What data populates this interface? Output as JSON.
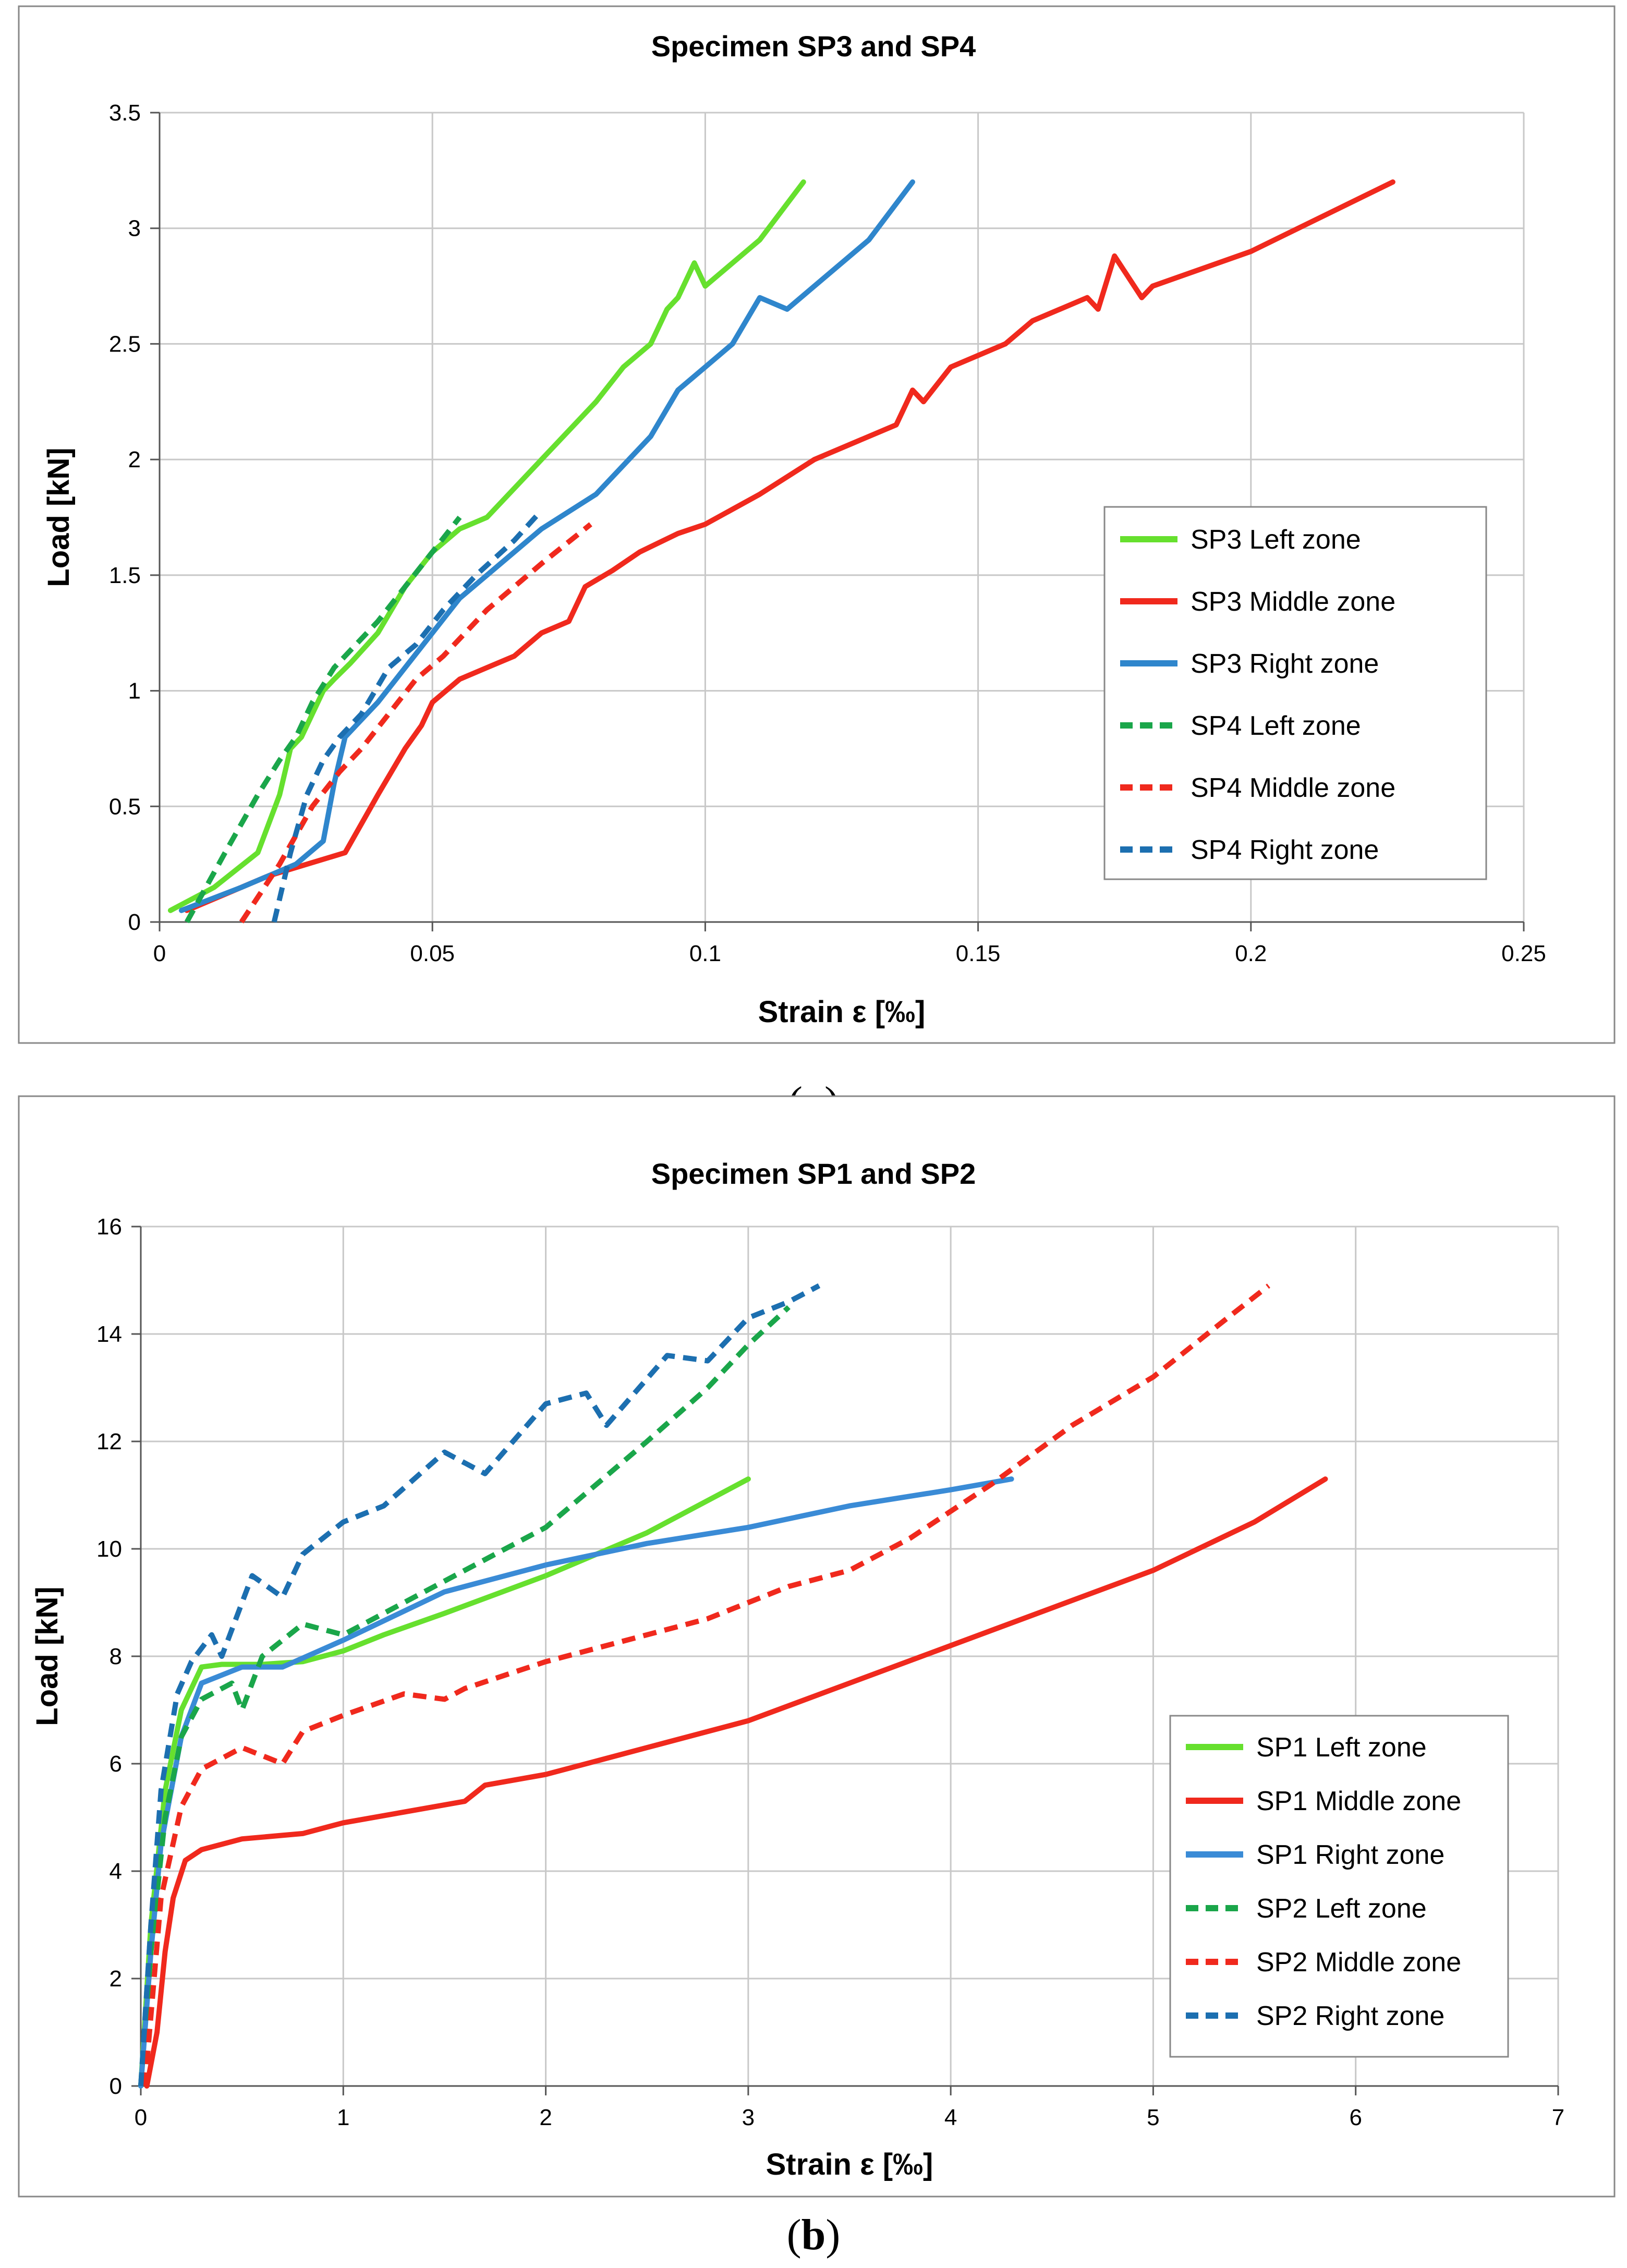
{
  "chart_data": [
    {
      "type": "line",
      "title": "Specimen SP3 and SP4",
      "xlabel": "Strain ε [‰]",
      "ylabel": "Load [kN]",
      "xlim": [
        0,
        0.25
      ],
      "ylim": [
        0,
        3.5
      ],
      "xticks": [
        "0",
        "0.05",
        "0.1",
        "0.15",
        "0.2",
        "0.25"
      ],
      "yticks": [
        "0",
        "0.5",
        "1",
        "1.5",
        "2",
        "2.5",
        "3",
        "3.5"
      ],
      "grid": true,
      "legend_position": "right",
      "caption_letter": "a",
      "series": [
        {
          "name": "SP3 Left zone",
          "color": "#66e02e",
          "dash": false,
          "x": [
            0.002,
            0.01,
            0.018,
            0.022,
            0.024,
            0.026,
            0.028,
            0.03,
            0.032,
            0.035,
            0.04,
            0.045,
            0.05,
            0.055,
            0.06,
            0.07,
            0.08,
            0.085,
            0.09,
            0.093,
            0.095,
            0.098,
            0.1,
            0.11,
            0.118
          ],
          "y": [
            0.05,
            0.15,
            0.3,
            0.55,
            0.75,
            0.8,
            0.9,
            1.0,
            1.05,
            1.12,
            1.25,
            1.45,
            1.6,
            1.7,
            1.75,
            2.0,
            2.25,
            2.4,
            2.5,
            2.65,
            2.7,
            2.85,
            2.75,
            2.95,
            3.2
          ]
        },
        {
          "name": "SP3 Middle zone",
          "color": "#f0291d",
          "dash": false,
          "x": [
            0.005,
            0.02,
            0.034,
            0.04,
            0.045,
            0.048,
            0.05,
            0.055,
            0.06,
            0.065,
            0.07,
            0.075,
            0.078,
            0.083,
            0.088,
            0.095,
            0.1,
            0.11,
            0.12,
            0.135,
            0.138,
            0.14,
            0.145,
            0.155,
            0.16,
            0.17,
            0.172,
            0.175,
            0.18,
            0.182,
            0.2,
            0.226
          ],
          "y": [
            0.05,
            0.2,
            0.3,
            0.55,
            0.75,
            0.85,
            0.95,
            1.05,
            1.1,
            1.15,
            1.25,
            1.3,
            1.45,
            1.52,
            1.6,
            1.68,
            1.72,
            1.85,
            2.0,
            2.15,
            2.3,
            2.25,
            2.4,
            2.5,
            2.6,
            2.7,
            2.65,
            2.88,
            2.7,
            2.75,
            2.9,
            3.2
          ]
        },
        {
          "name": "SP3 Right zone",
          "color": "#2f86cc",
          "dash": false,
          "x": [
            0.004,
            0.015,
            0.025,
            0.03,
            0.032,
            0.034,
            0.036,
            0.04,
            0.045,
            0.05,
            0.055,
            0.06,
            0.065,
            0.07,
            0.08,
            0.09,
            0.095,
            0.1,
            0.105,
            0.11,
            0.115,
            0.12,
            0.13,
            0.138
          ],
          "y": [
            0.05,
            0.15,
            0.25,
            0.35,
            0.6,
            0.8,
            0.85,
            0.95,
            1.1,
            1.25,
            1.4,
            1.5,
            1.6,
            1.7,
            1.85,
            2.1,
            2.3,
            2.4,
            2.5,
            2.7,
            2.65,
            2.75,
            2.95,
            3.2
          ]
        },
        {
          "name": "SP4 Left zone",
          "color": "#1aa64a",
          "dash": true,
          "x": [
            0.005,
            0.012,
            0.018,
            0.022,
            0.025,
            0.028,
            0.032,
            0.036,
            0.04,
            0.045,
            0.05,
            0.055
          ],
          "y": [
            0.0,
            0.3,
            0.55,
            0.7,
            0.8,
            0.95,
            1.1,
            1.2,
            1.3,
            1.45,
            1.6,
            1.75
          ]
        },
        {
          "name": "SP4 Middle zone",
          "color": "#f0291d",
          "dash": true,
          "x": [
            0.015,
            0.022,
            0.028,
            0.033,
            0.037,
            0.042,
            0.047,
            0.052,
            0.06,
            0.07,
            0.079
          ],
          "y": [
            0.0,
            0.25,
            0.5,
            0.65,
            0.75,
            0.9,
            1.05,
            1.15,
            1.35,
            1.55,
            1.72
          ]
        },
        {
          "name": "SP4 Right zone",
          "color": "#1c6fb0",
          "dash": true,
          "x": [
            0.021,
            0.024,
            0.027,
            0.03,
            0.033,
            0.037,
            0.042,
            0.047,
            0.052,
            0.058,
            0.065,
            0.07
          ],
          "y": [
            0.0,
            0.3,
            0.55,
            0.7,
            0.8,
            0.9,
            1.1,
            1.2,
            1.35,
            1.5,
            1.65,
            1.78
          ]
        }
      ]
    },
    {
      "type": "line",
      "title": "Specimen SP1 and SP2",
      "xlabel": "Strain ε [‰]",
      "ylabel": "Load [kN]",
      "xlim": [
        0,
        7
      ],
      "ylim": [
        0,
        16
      ],
      "xticks": [
        "0",
        "1",
        "2",
        "3",
        "4",
        "5",
        "6",
        "7"
      ],
      "yticks": [
        "0",
        "2",
        "4",
        "6",
        "8",
        "10",
        "12",
        "14",
        "16"
      ],
      "grid": true,
      "legend_position": "bottom-right",
      "caption_letter": "b",
      "series": [
        {
          "name": "SP1 Left zone",
          "color": "#66e02e",
          "dash": false,
          "x": [
            0.0,
            0.05,
            0.12,
            0.2,
            0.3,
            0.4,
            0.6,
            0.8,
            1.0,
            1.2,
            1.5,
            2.0,
            2.5,
            3.0
          ],
          "y": [
            0.0,
            3.0,
            5.5,
            7.0,
            7.8,
            7.85,
            7.85,
            7.9,
            8.1,
            8.4,
            8.8,
            9.5,
            10.3,
            11.3
          ]
        },
        {
          "name": "SP1 Middle zone",
          "color": "#f0291d",
          "dash": false,
          "x": [
            0.03,
            0.08,
            0.12,
            0.16,
            0.22,
            0.3,
            0.5,
            0.8,
            1.0,
            1.3,
            1.6,
            1.7,
            2.0,
            2.5,
            3.0,
            3.5,
            4.0,
            4.5,
            5.0,
            5.5,
            5.85
          ],
          "y": [
            0.0,
            1.0,
            2.5,
            3.5,
            4.2,
            4.4,
            4.6,
            4.7,
            4.9,
            5.1,
            5.3,
            5.6,
            5.8,
            6.3,
            6.8,
            7.5,
            8.2,
            8.9,
            9.6,
            10.5,
            11.3
          ]
        },
        {
          "name": "SP1 Right zone",
          "color": "#3a8bd6",
          "dash": false,
          "x": [
            0.0,
            0.05,
            0.1,
            0.2,
            0.3,
            0.5,
            0.7,
            1.0,
            1.5,
            2.0,
            2.5,
            3.0,
            3.5,
            4.0,
            4.3
          ],
          "y": [
            0.0,
            2.5,
            4.5,
            6.5,
            7.5,
            7.8,
            7.8,
            8.3,
            9.2,
            9.7,
            10.1,
            10.4,
            10.8,
            11.1,
            11.3
          ]
        },
        {
          "name": "SP2 Left zone",
          "color": "#1aa64a",
          "dash": true,
          "x": [
            0.0,
            0.05,
            0.12,
            0.2,
            0.3,
            0.45,
            0.5,
            0.6,
            0.8,
            1.0,
            1.5,
            2.0,
            2.5,
            2.8,
            3.0,
            3.2
          ],
          "y": [
            0.0,
            2.5,
            5.0,
            6.5,
            7.2,
            7.5,
            7.0,
            8.0,
            8.6,
            8.4,
            9.4,
            10.4,
            12.0,
            13.0,
            13.8,
            14.5
          ]
        },
        {
          "name": "SP2 Middle zone",
          "color": "#f0291d",
          "dash": true,
          "x": [
            0.02,
            0.1,
            0.2,
            0.3,
            0.5,
            0.7,
            0.8,
            1.0,
            1.3,
            1.5,
            1.6,
            2.0,
            2.5,
            2.8,
            3.2,
            3.5,
            3.8,
            4.2,
            4.6,
            5.0,
            5.3,
            5.57
          ],
          "y": [
            0.0,
            3.5,
            5.2,
            5.9,
            6.3,
            6.0,
            6.6,
            6.9,
            7.3,
            7.2,
            7.4,
            7.9,
            8.4,
            8.7,
            9.3,
            9.6,
            10.2,
            11.2,
            12.3,
            13.2,
            14.1,
            14.9
          ]
        },
        {
          "name": "SP2 Right zone",
          "color": "#1c6fb0",
          "dash": true,
          "x": [
            0.0,
            0.05,
            0.1,
            0.18,
            0.25,
            0.35,
            0.4,
            0.55,
            0.7,
            0.8,
            1.0,
            1.2,
            1.5,
            1.7,
            2.0,
            2.2,
            2.3,
            2.6,
            2.8,
            3.0,
            3.2,
            3.35
          ],
          "y": [
            0.0,
            3.0,
            5.5,
            7.3,
            7.9,
            8.4,
            8.0,
            9.5,
            9.1,
            9.9,
            10.5,
            10.8,
            11.8,
            11.4,
            12.7,
            12.9,
            12.3,
            13.6,
            13.5,
            14.3,
            14.6,
            14.9
          ]
        }
      ]
    }
  ]
}
